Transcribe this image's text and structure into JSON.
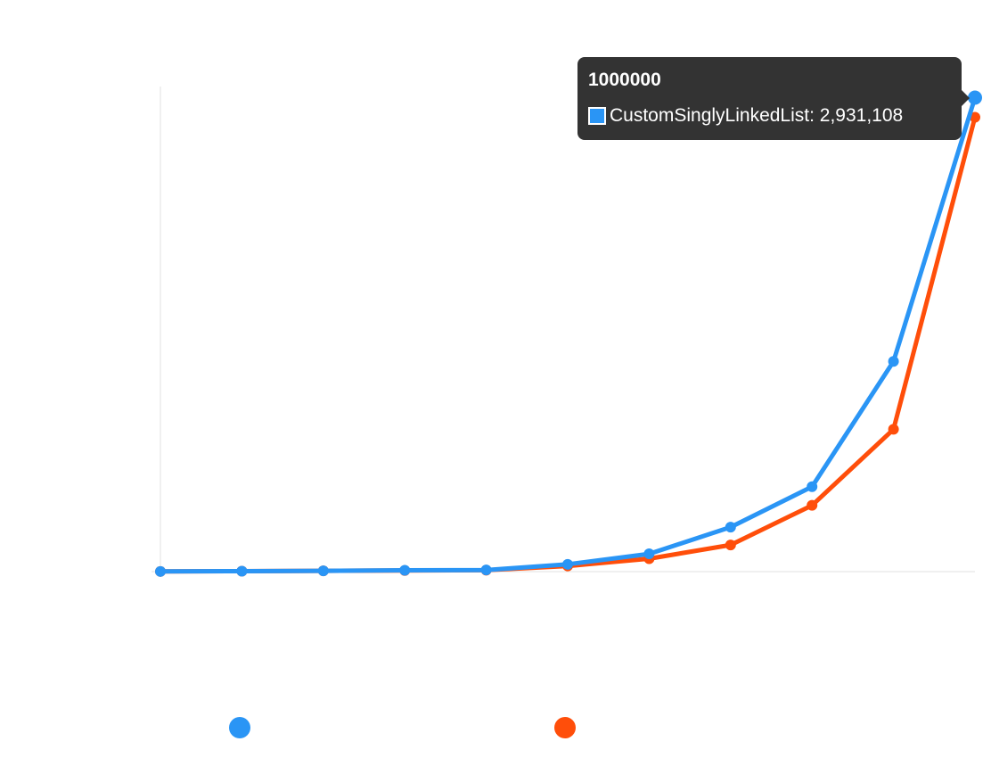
{
  "chart_data": {
    "type": "line",
    "x": [
      "",
      "",
      "",
      "",
      "",
      "",
      "",
      "",
      "",
      "",
      "1000000"
    ],
    "series": [
      {
        "name": "CustomSinglyLinkedList",
        "color": "#2A95F5",
        "values": [
          1000,
          3000,
          5000,
          8000,
          10000,
          45000,
          110000,
          275000,
          525000,
          1300000,
          2931108
        ]
      },
      {
        "name": "",
        "color": "#FF4E0A",
        "values": [
          1000,
          3000,
          5000,
          7000,
          9000,
          35000,
          80000,
          165000,
          410000,
          880000,
          2810000
        ]
      }
    ],
    "ylim": [
      0,
      3000000
    ],
    "grid": false,
    "legend": "bottom"
  },
  "tooltip": {
    "title": "1000000",
    "series_label": "CustomSinglyLinkedList: 2,931,108"
  }
}
